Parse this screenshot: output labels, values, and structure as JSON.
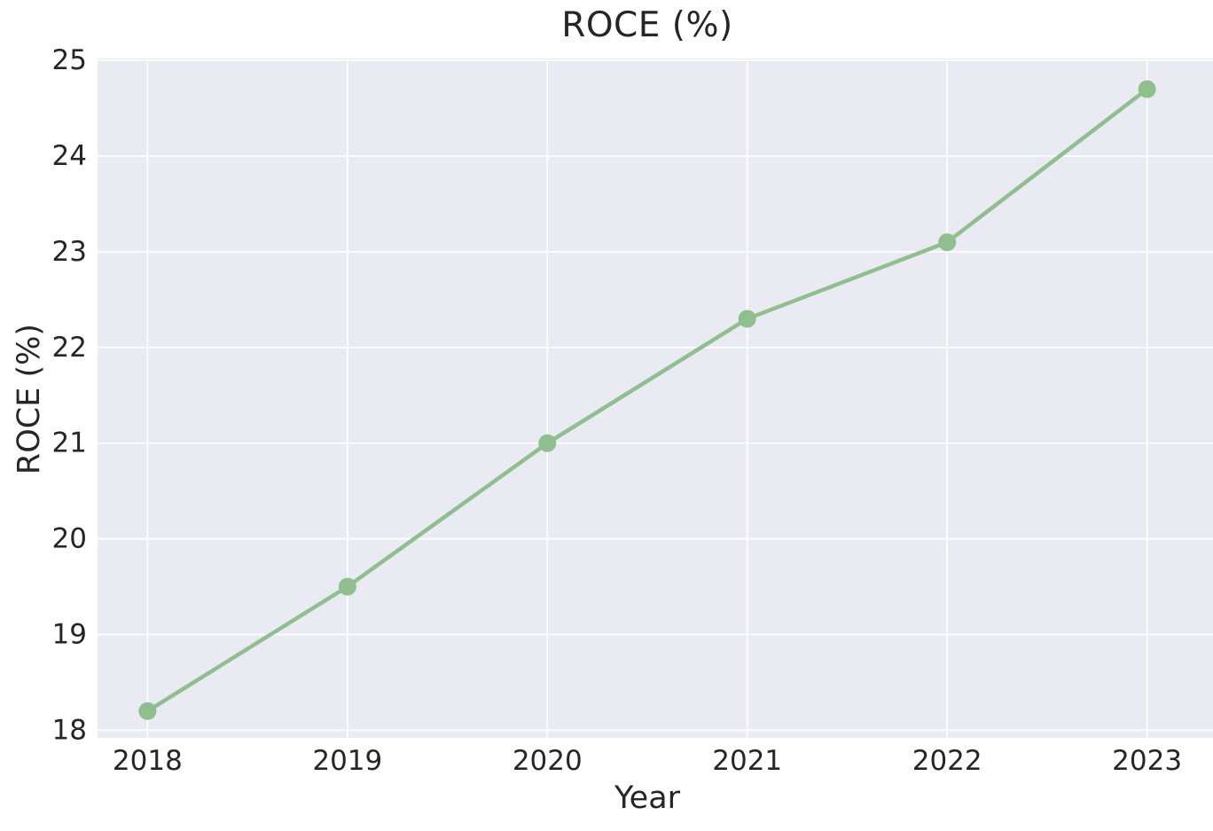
{
  "chart_data": {
    "type": "line",
    "title": "ROCE (%)",
    "xlabel": "Year",
    "ylabel": "ROCE (%)",
    "categories": [
      2018,
      2019,
      2020,
      2021,
      2022,
      2023
    ],
    "series": [
      {
        "name": "ROCE",
        "values": [
          18.2,
          19.5,
          21.0,
          22.3,
          23.1,
          24.7
        ]
      }
    ],
    "xticks": [
      "2018",
      "2019",
      "2020",
      "2021",
      "2022",
      "2023"
    ],
    "yticks": [
      "18",
      "19",
      "20",
      "21",
      "22",
      "23",
      "24",
      "25"
    ],
    "ytick_values": [
      18,
      19,
      20,
      21,
      22,
      23,
      24,
      25
    ],
    "xlim": [
      2017.75,
      2023.25
    ],
    "ylim": [
      17.92,
      25.02
    ],
    "grid": true,
    "legend_position": "none",
    "style": "seaborn-darkgrid",
    "colors": {
      "line": "#8fbe8f",
      "marker": "#8fbe8f",
      "plot_background": "#eaeaf2",
      "grid": "#ffffff",
      "text": "#262626",
      "figure_background": "#ffffff"
    }
  }
}
